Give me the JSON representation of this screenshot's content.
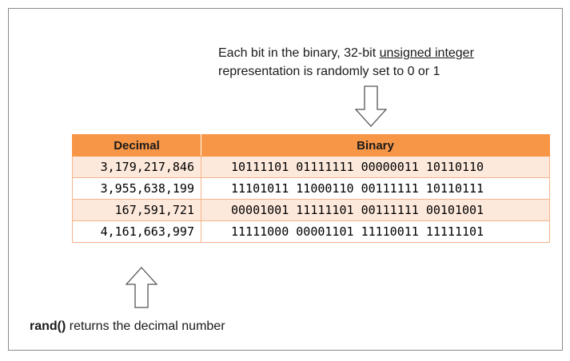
{
  "caption_top": {
    "line1_prefix": "Each bit in the binary, 32-bit ",
    "line1_link": "unsigned integer",
    "line2": "representation is randomly set to 0 or 1"
  },
  "table": {
    "headers": [
      "Decimal",
      "Binary"
    ],
    "rows": [
      {
        "decimal": "3,179,217,846",
        "binary": [
          "10111101",
          "01111111",
          "00000011",
          "10110110"
        ]
      },
      {
        "decimal": "3,955,638,199",
        "binary": [
          "11101011",
          "11000110",
          "00111111",
          "10110111"
        ]
      },
      {
        "decimal": "167,591,721",
        "binary": [
          "00001001",
          "11111101",
          "00111111",
          "00101001"
        ]
      },
      {
        "decimal": "4,161,663,997",
        "binary": [
          "11111000",
          "00001101",
          "11110011",
          "11111101"
        ]
      }
    ]
  },
  "caption_bottom": {
    "bold": "rand()",
    "rest": " returns the decimal number"
  },
  "colors": {
    "header": "#f79646",
    "row_alt": "#fde9dc",
    "row_border": "#f5b48a"
  },
  "icons": [
    "arrow-down-icon",
    "arrow-up-icon"
  ]
}
